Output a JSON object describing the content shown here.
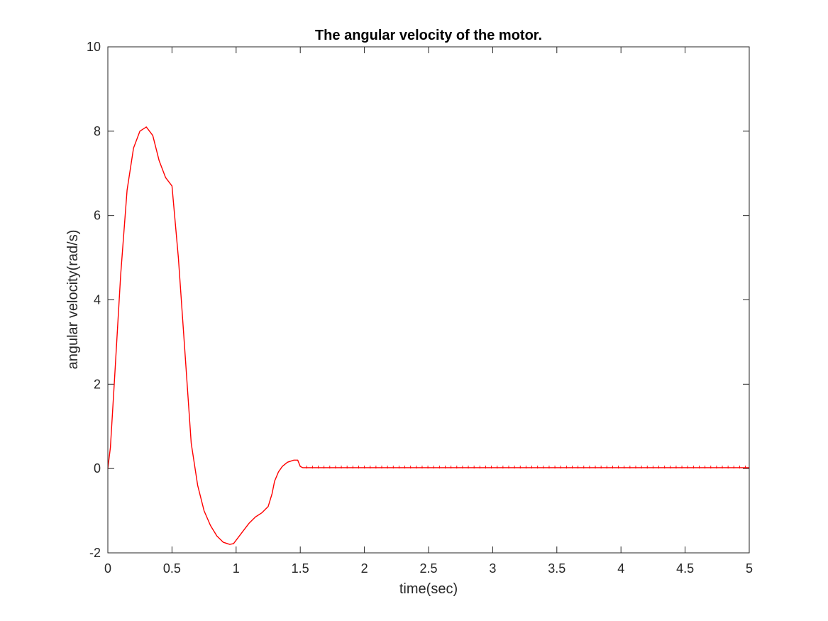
{
  "chart_data": {
    "type": "line",
    "title": "The angular velocity of the motor.",
    "xlabel": "time(sec)",
    "ylabel": "angular velocity(rad/s)",
    "xlim": [
      0,
      5
    ],
    "ylim": [
      -2,
      10
    ],
    "xticks": [
      "0",
      "0.5",
      "1",
      "1.5",
      "2",
      "2.5",
      "3",
      "3.5",
      "4",
      "4.5",
      "5"
    ],
    "yticks": [
      "-2",
      "0",
      "2",
      "4",
      "6",
      "8",
      "10"
    ],
    "grid": false,
    "legend": "none",
    "series": [
      {
        "color": "#ff0000",
        "x": [
          0,
          0.02,
          0.05,
          0.1,
          0.15,
          0.2,
          0.25,
          0.3,
          0.35,
          0.4,
          0.45,
          0.5,
          0.55,
          0.6,
          0.65,
          0.7,
          0.75,
          0.8,
          0.85,
          0.9,
          0.95,
          0.98,
          1.0,
          1.05,
          1.1,
          1.15,
          1.2,
          1.25,
          1.28,
          1.3,
          1.33,
          1.36,
          1.4,
          1.45,
          1.48,
          1.5,
          1.52,
          1.6,
          2.0,
          2.5,
          3.0,
          3.5,
          4.0,
          4.5,
          5.0
        ],
        "y": [
          0,
          0.5,
          2.0,
          4.6,
          6.6,
          7.6,
          8.0,
          8.1,
          7.9,
          7.3,
          6.9,
          6.7,
          5.0,
          2.8,
          0.6,
          -0.4,
          -1.0,
          -1.35,
          -1.6,
          -1.75,
          -1.8,
          -1.78,
          -1.7,
          -1.5,
          -1.3,
          -1.15,
          -1.05,
          -0.9,
          -0.6,
          -0.3,
          -0.08,
          0.05,
          0.15,
          0.2,
          0.2,
          0.05,
          0.02,
          0.02,
          0.02,
          0.02,
          0.02,
          0.02,
          0.02,
          0.02,
          0.02
        ]
      }
    ]
  }
}
